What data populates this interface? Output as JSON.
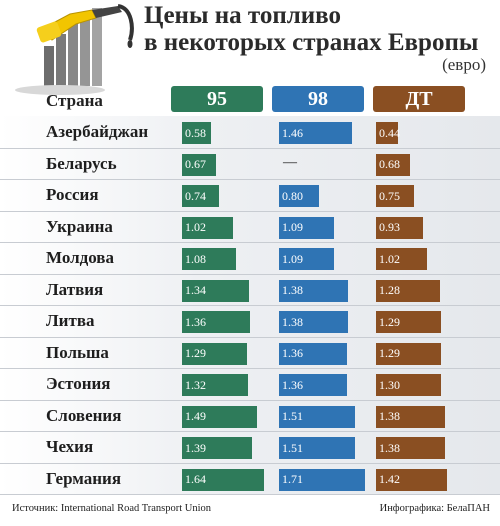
{
  "header": {
    "title_line1": "Цены на топливо",
    "title_line2": "в некоторых странах Европы",
    "unit": "(евро)"
  },
  "colors": {
    "fuel95": "#2e7b5a",
    "fuel98": "#2f74b4",
    "diesel": "#8a4f22"
  },
  "chart_data": {
    "type": "bar",
    "country_header": "Страна",
    "categories": [
      "Азербайджан",
      "Беларусь",
      "Россия",
      "Украина",
      "Молдова",
      "Латвия",
      "Литва",
      "Польша",
      "Эстония",
      "Словения",
      "Чехия",
      "Германия"
    ],
    "series": [
      {
        "name": "95",
        "values": [
          0.58,
          0.67,
          0.74,
          1.02,
          1.08,
          1.34,
          1.36,
          1.29,
          1.32,
          1.49,
          1.39,
          1.64
        ],
        "labels": [
          "0.58",
          "0.67",
          "0.74",
          "1.02",
          "1.08",
          "1.34",
          "1.36",
          "1.29",
          "1.32",
          "1.49",
          "1.39",
          "1.64"
        ]
      },
      {
        "name": "98",
        "values": [
          1.46,
          null,
          0.8,
          1.09,
          1.09,
          1.38,
          1.38,
          1.36,
          1.36,
          1.51,
          1.51,
          1.71
        ],
        "labels": [
          "1.46",
          "—",
          "0.80",
          "1.09",
          "1.09",
          "1.38",
          "1.38",
          "1.36",
          "1.36",
          "1.51",
          "1.51",
          "1.71"
        ]
      },
      {
        "name": "ДТ",
        "values": [
          0.44,
          0.68,
          0.75,
          0.93,
          1.02,
          1.28,
          1.29,
          1.29,
          1.3,
          1.38,
          1.38,
          1.42
        ],
        "labels": [
          "0.44",
          "0.68",
          "0.75",
          "0.93",
          "1.02",
          "1.28",
          "1.29",
          "1.29",
          "1.30",
          "1.38",
          "1.38",
          "1.42"
        ]
      }
    ]
  },
  "footer": {
    "source": "Источник: International Road Transport Union",
    "credit": "Инфографика: БелаПАН"
  }
}
